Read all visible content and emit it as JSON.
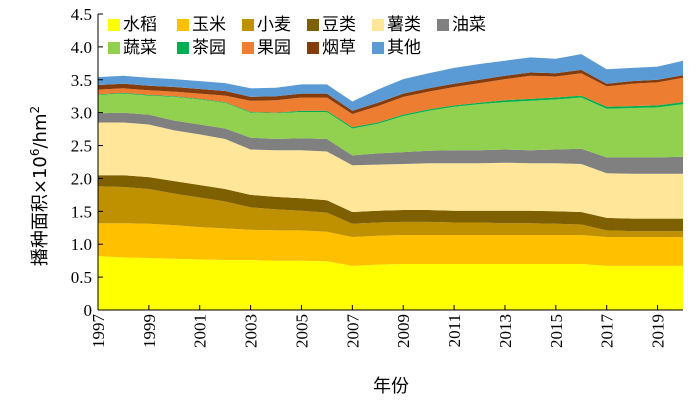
{
  "chart_data": {
    "type": "area",
    "stacked": true,
    "xlabel": "年份",
    "ylabel_main": "播种面积×10",
    "ylabel_exp": "6",
    "ylabel_unit": "/hm",
    "ylabel_unit_exp": "2",
    "ylim": [
      0,
      4.5
    ],
    "xlim": [
      1997,
      2020
    ],
    "yticks": [
      "0",
      "0.5",
      "1.0",
      "1.5",
      "2.0",
      "2.5",
      "3.0",
      "3.5",
      "4.0",
      "4.5"
    ],
    "xticks": [
      1997,
      1999,
      2001,
      2003,
      2005,
      2007,
      2009,
      2011,
      2013,
      2015,
      2017,
      2019
    ],
    "xtick_labels": [
      "1997",
      "1999",
      "2001",
      "2003",
      "2005",
      "2007",
      "2009",
      "2011",
      "2013",
      "2015",
      "2017",
      "2019"
    ],
    "grid": false,
    "legend_position": "top-left",
    "x": [
      1997,
      1998,
      1999,
      2000,
      2001,
      2002,
      2003,
      2004,
      2005,
      2006,
      2007,
      2008,
      2009,
      2010,
      2011,
      2012,
      2013,
      2014,
      2015,
      2016,
      2017,
      2018,
      2019,
      2020
    ],
    "series": [
      {
        "name": "水稻",
        "color": "#ffff00",
        "values": [
          0.82,
          0.8,
          0.79,
          0.78,
          0.77,
          0.76,
          0.76,
          0.75,
          0.75,
          0.74,
          0.67,
          0.69,
          0.7,
          0.7,
          0.7,
          0.7,
          0.7,
          0.7,
          0.7,
          0.7,
          0.67,
          0.67,
          0.67,
          0.67
        ]
      },
      {
        "name": "玉米",
        "color": "#ffc000",
        "values": [
          0.5,
          0.52,
          0.52,
          0.51,
          0.49,
          0.48,
          0.46,
          0.46,
          0.46,
          0.45,
          0.44,
          0.44,
          0.44,
          0.44,
          0.44,
          0.44,
          0.44,
          0.44,
          0.44,
          0.44,
          0.44,
          0.44,
          0.44,
          0.44
        ]
      },
      {
        "name": "小麦",
        "color": "#bf9000",
        "values": [
          0.56,
          0.55,
          0.53,
          0.48,
          0.45,
          0.41,
          0.34,
          0.32,
          0.3,
          0.29,
          0.2,
          0.2,
          0.2,
          0.2,
          0.19,
          0.19,
          0.18,
          0.18,
          0.17,
          0.16,
          0.1,
          0.09,
          0.09,
          0.09
        ]
      },
      {
        "name": "豆类",
        "color": "#7f6000",
        "values": [
          0.17,
          0.18,
          0.18,
          0.19,
          0.19,
          0.19,
          0.19,
          0.19,
          0.19,
          0.19,
          0.18,
          0.18,
          0.18,
          0.18,
          0.18,
          0.18,
          0.19,
          0.19,
          0.19,
          0.19,
          0.19,
          0.19,
          0.19,
          0.19
        ]
      },
      {
        "name": "薯类",
        "color": "#ffe699",
        "values": [
          0.8,
          0.8,
          0.8,
          0.77,
          0.77,
          0.76,
          0.69,
          0.71,
          0.73,
          0.74,
          0.71,
          0.7,
          0.7,
          0.71,
          0.72,
          0.72,
          0.73,
          0.72,
          0.73,
          0.73,
          0.68,
          0.68,
          0.68,
          0.68
        ]
      },
      {
        "name": "油菜",
        "color": "#808080",
        "values": [
          0.14,
          0.15,
          0.15,
          0.15,
          0.15,
          0.16,
          0.18,
          0.17,
          0.18,
          0.19,
          0.15,
          0.17,
          0.18,
          0.19,
          0.2,
          0.2,
          0.2,
          0.2,
          0.21,
          0.23,
          0.24,
          0.25,
          0.25,
          0.26
        ]
      },
      {
        "name": "蔬菜",
        "color": "#92d050",
        "values": [
          0.28,
          0.29,
          0.29,
          0.36,
          0.38,
          0.39,
          0.38,
          0.39,
          0.4,
          0.41,
          0.41,
          0.45,
          0.55,
          0.61,
          0.66,
          0.7,
          0.72,
          0.75,
          0.76,
          0.78,
          0.74,
          0.75,
          0.76,
          0.8
        ]
      },
      {
        "name": "茶园",
        "color": "#00b050",
        "values": [
          0.01,
          0.01,
          0.01,
          0.01,
          0.01,
          0.01,
          0.01,
          0.01,
          0.02,
          0.02,
          0.02,
          0.02,
          0.02,
          0.02,
          0.02,
          0.02,
          0.03,
          0.03,
          0.03,
          0.03,
          0.03,
          0.03,
          0.03,
          0.03
        ]
      },
      {
        "name": "果园",
        "color": "#ed7d31",
        "values": [
          0.07,
          0.07,
          0.07,
          0.07,
          0.08,
          0.1,
          0.17,
          0.19,
          0.2,
          0.2,
          0.2,
          0.25,
          0.27,
          0.27,
          0.28,
          0.3,
          0.32,
          0.35,
          0.32,
          0.34,
          0.31,
          0.34,
          0.35,
          0.37
        ]
      },
      {
        "name": "烟草",
        "color": "#843c0c",
        "values": [
          0.07,
          0.07,
          0.07,
          0.07,
          0.07,
          0.07,
          0.06,
          0.06,
          0.06,
          0.06,
          0.05,
          0.05,
          0.05,
          0.05,
          0.05,
          0.05,
          0.05,
          0.05,
          0.05,
          0.05,
          0.04,
          0.04,
          0.04,
          0.04
        ]
      },
      {
        "name": "其他",
        "color": "#5b9bd5",
        "values": [
          0.12,
          0.12,
          0.12,
          0.12,
          0.12,
          0.12,
          0.13,
          0.13,
          0.14,
          0.14,
          0.14,
          0.2,
          0.22,
          0.23,
          0.24,
          0.24,
          0.23,
          0.23,
          0.22,
          0.24,
          0.22,
          0.2,
          0.2,
          0.22
        ]
      }
    ]
  }
}
